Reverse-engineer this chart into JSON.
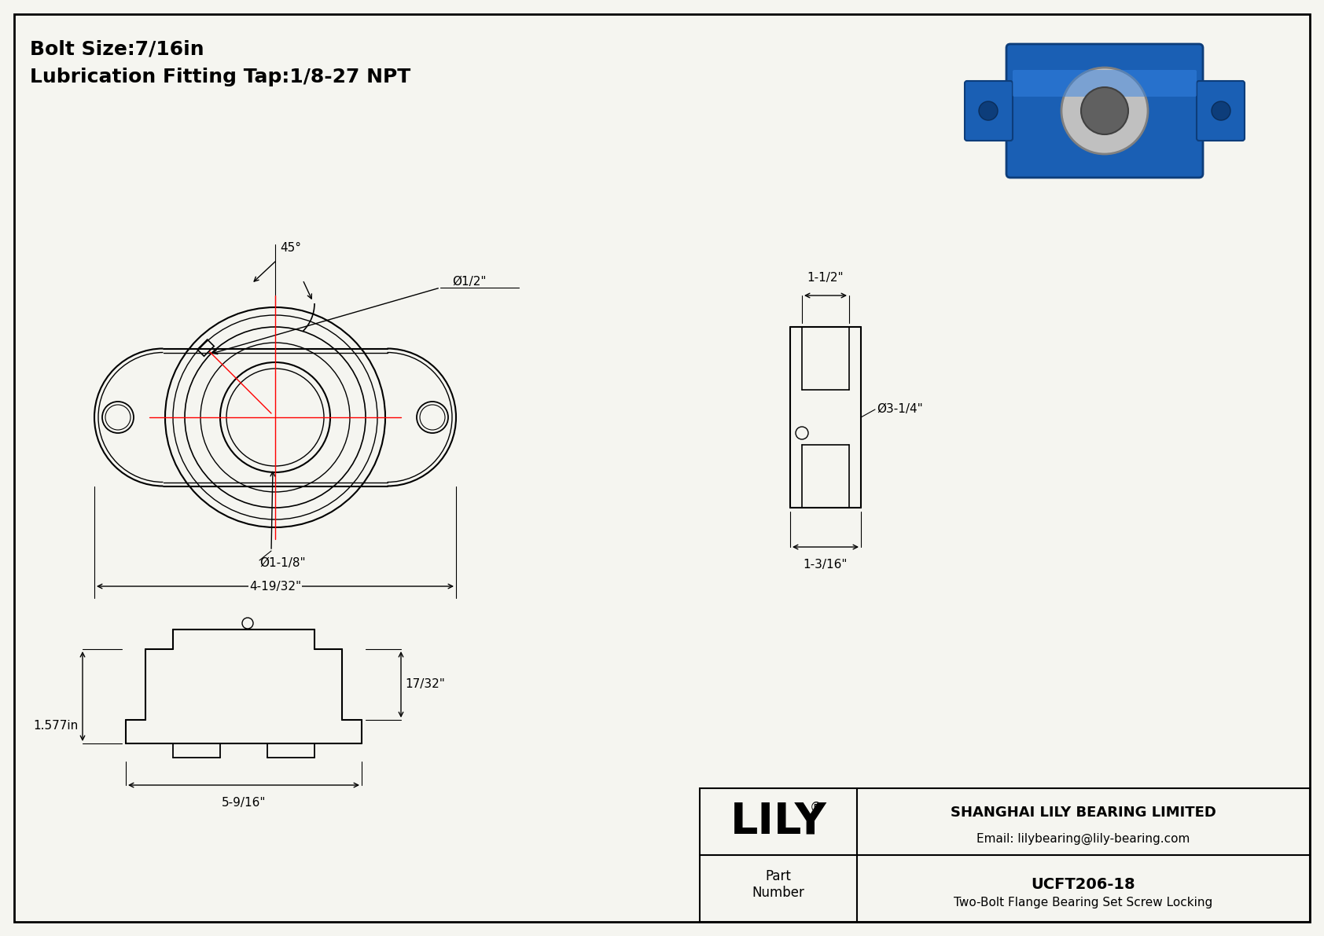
{
  "bg_color": "#f5f5f0",
  "border_color": "#000000",
  "line_color": "#000000",
  "red_color": "#ff0000",
  "title_line1": "Bolt Size:7/16in",
  "title_line2": "Lubrication Fitting Tap:1/8-27 NPT",
  "dim_45": "45°",
  "dim_half": "Ø1/2\"",
  "dim_bore": "Ø1-1/8\"",
  "dim_width": "4-19/32\"",
  "dim_side_top": "1-1/2\"",
  "dim_side_diam": "Ø3-1/4\"",
  "dim_side_bot": "1-3/16\"",
  "dim_height": "1.577in",
  "dim_17_32": "17/32\"",
  "dim_bottom_w": "5-9/16\"",
  "company": "SHANGHAI LILY BEARING LIMITED",
  "email": "Email: lilybearing@lily-bearing.com",
  "part_label": "Part\nNumber",
  "part_number": "UCFT206-18",
  "part_desc": "Two-Bolt Flange Bearing Set Screw Locking",
  "logo": "LILY",
  "logo_reg": "®"
}
